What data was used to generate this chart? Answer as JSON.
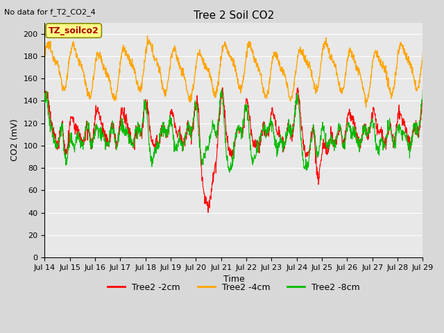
{
  "title": "Tree 2 Soil CO2",
  "no_data_text": "No data for f_T2_CO2_4",
  "xlabel": "Time",
  "ylabel": "CO2 (mV)",
  "ylim": [
    0,
    210
  ],
  "yticks": [
    0,
    20,
    40,
    60,
    80,
    100,
    120,
    140,
    160,
    180,
    200
  ],
  "xtick_labels": [
    "Jul 14",
    "Jul 15",
    "Jul 16",
    "Jul 17",
    "Jul 18",
    "Jul 19",
    "Jul 20",
    "Jul 21",
    "Jul 22",
    "Jul 23",
    "Jul 24",
    "Jul 25",
    "Jul 26",
    "Jul 27",
    "Jul 28",
    "Jul 29"
  ],
  "legend_labels": [
    "Tree2 -2cm",
    "Tree2 -4cm",
    "Tree2 -8cm"
  ],
  "legend_colors": [
    "#ff0000",
    "#ffa500",
    "#00bb00"
  ],
  "fig_bg_color": "#d8d8d8",
  "plot_bg_color": "#e8e8e8",
  "grid_color": "#ffffff",
  "annotation_box": "TZ_soilco2",
  "annotation_color": "#aa0000",
  "annotation_bg": "#ffff88",
  "title_fontsize": 11,
  "label_fontsize": 9,
  "tick_fontsize": 8
}
